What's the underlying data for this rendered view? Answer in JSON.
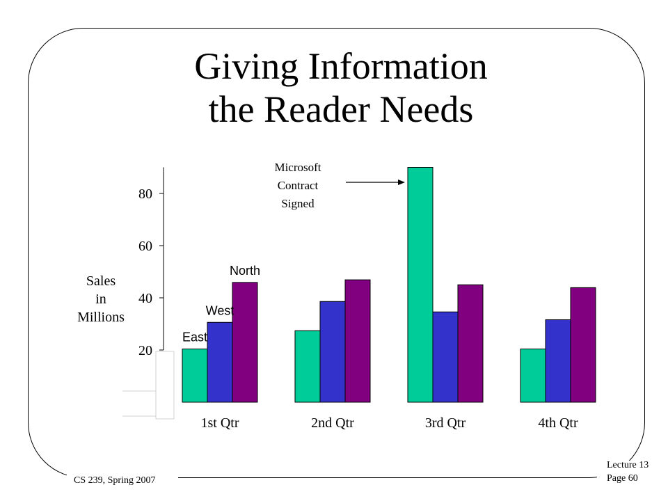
{
  "slide": {
    "title_line1": "Giving Information",
    "title_line2": "the Reader Needs",
    "footer_left": "CS 239, Spring 2007",
    "footer_right_line1": "Lecture 13",
    "footer_right_line2": "Page 60"
  },
  "colors": {
    "East": "#00CC99",
    "West": "#3333CC",
    "North": "#800080"
  },
  "chart_data": {
    "type": "bar",
    "categories": [
      "1st Qtr",
      "2nd Qtr",
      "3rd Qtr",
      "4th Qtr"
    ],
    "series": [
      {
        "name": "East",
        "values": [
          20.4,
          27.4,
          90,
          20.4
        ]
      },
      {
        "name": "West",
        "values": [
          30.6,
          38.6,
          34.6,
          31.6
        ]
      },
      {
        "name": "North",
        "values": [
          45.9,
          46.9,
          45,
          43.9
        ]
      }
    ],
    "ylabel_lines": [
      "Sales",
      "in",
      "Millions"
    ],
    "yticks": [
      20,
      40,
      60,
      80
    ],
    "ylim": [
      0,
      90
    ],
    "axis_cutoff": 20,
    "annotation": {
      "lines": [
        "Microsoft",
        "Contract",
        "Signed"
      ],
      "target_category": "3rd Qtr",
      "target_series": "East"
    },
    "grid": false,
    "legend": "labels above first group"
  }
}
